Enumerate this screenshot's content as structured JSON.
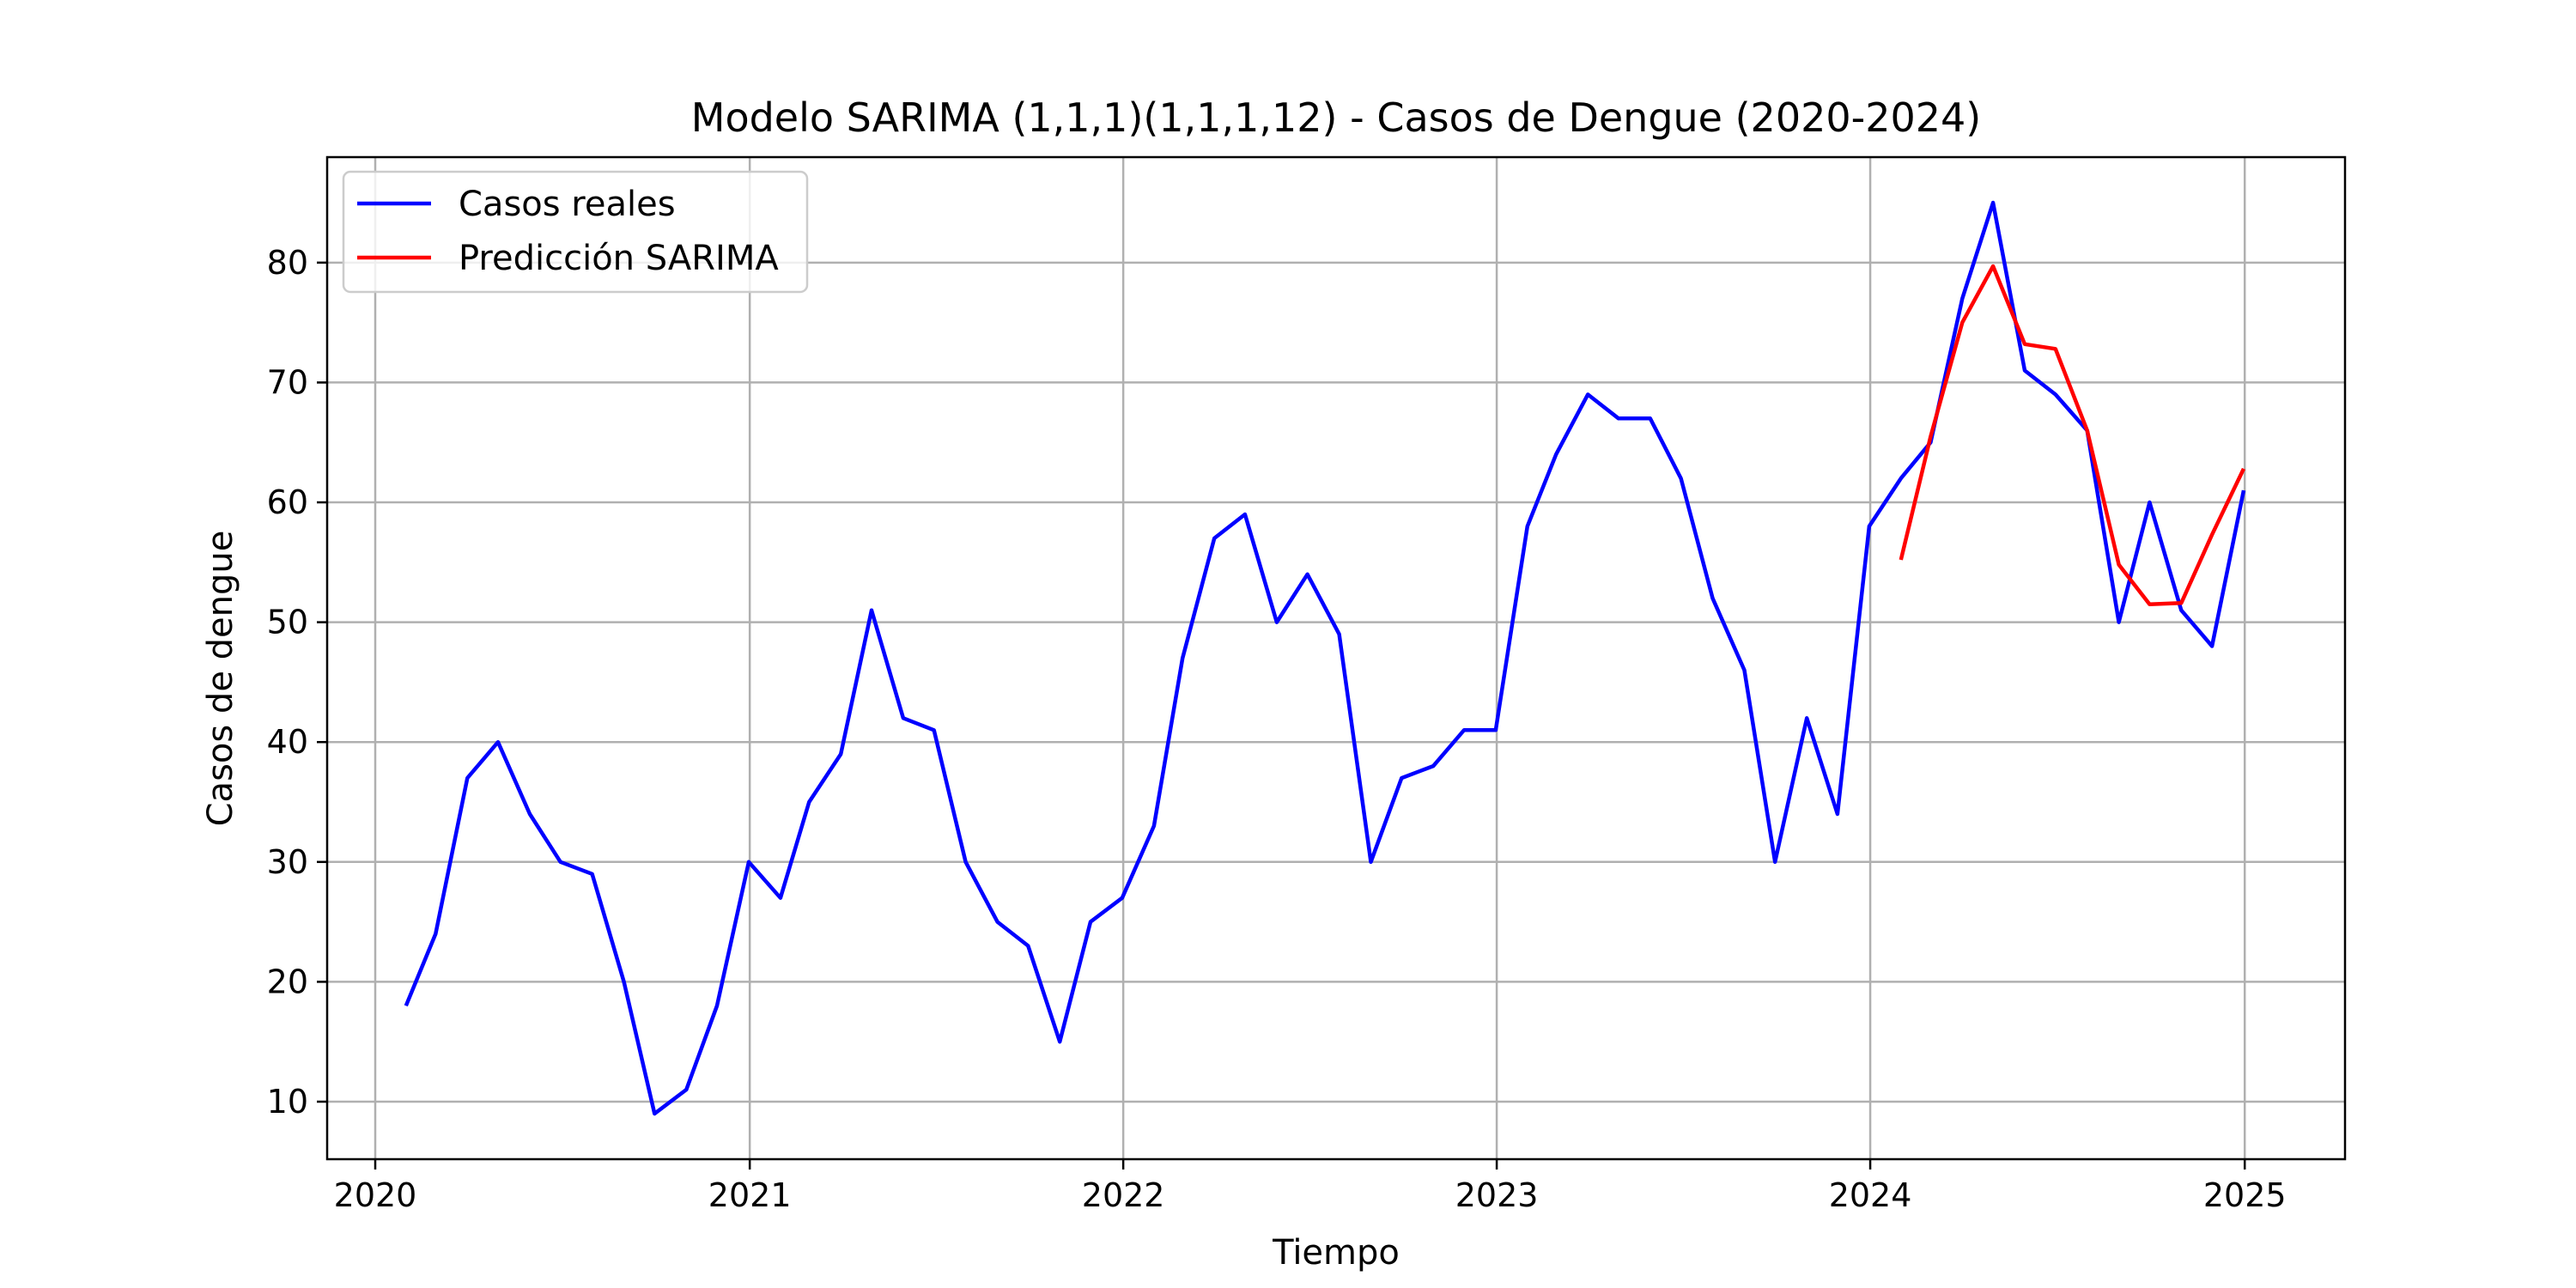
{
  "chart_data": {
    "type": "line",
    "title": "Modelo SARIMA (1,1,1)(1,1,1,12) - Casos de Dengue (2020-2024)",
    "xlabel": "Tiempo",
    "ylabel": "Casos de dengue",
    "xlim": [
      "2019-11-15",
      "2025-04-09"
    ],
    "ylim": [
      5.2,
      88.8
    ],
    "x_ticks": [
      "2020",
      "2021",
      "2022",
      "2023",
      "2024",
      "2025"
    ],
    "y_ticks": [
      10,
      20,
      30,
      40,
      50,
      60,
      70,
      80
    ],
    "grid": true,
    "legend_position": "top-left",
    "series": [
      {
        "name": "Casos reales",
        "color": "#0000ff",
        "x": [
          "2020-01-31",
          "2020-02-29",
          "2020-03-31",
          "2020-04-30",
          "2020-05-31",
          "2020-06-30",
          "2020-07-31",
          "2020-08-31",
          "2020-09-30",
          "2020-10-31",
          "2020-11-30",
          "2020-12-31",
          "2021-01-31",
          "2021-02-28",
          "2021-03-31",
          "2021-04-30",
          "2021-05-31",
          "2021-06-30",
          "2021-07-31",
          "2021-08-31",
          "2021-09-30",
          "2021-10-31",
          "2021-11-30",
          "2021-12-31",
          "2022-01-31",
          "2022-02-28",
          "2022-03-31",
          "2022-04-30",
          "2022-05-31",
          "2022-06-30",
          "2022-07-31",
          "2022-08-31",
          "2022-09-30",
          "2022-10-31",
          "2022-11-30",
          "2022-12-31",
          "2023-01-31",
          "2023-02-28",
          "2023-03-31",
          "2023-04-30",
          "2023-05-31",
          "2023-06-30",
          "2023-07-31",
          "2023-08-31",
          "2023-09-30",
          "2023-10-31",
          "2023-11-30",
          "2023-12-31",
          "2024-01-31",
          "2024-02-29",
          "2024-03-31",
          "2024-04-30",
          "2024-05-31",
          "2024-06-30",
          "2024-07-31",
          "2024-08-31",
          "2024-09-30",
          "2024-10-31",
          "2024-11-30",
          "2024-12-31"
        ],
        "values": [
          18,
          24,
          37,
          40,
          34,
          30,
          29,
          20,
          9,
          11,
          18,
          30,
          27,
          35,
          39,
          51,
          42,
          41,
          30,
          25,
          23,
          15,
          25,
          27,
          33,
          47,
          57,
          59,
          50,
          54,
          49,
          30,
          37,
          38,
          41,
          41,
          58,
          64,
          69,
          67,
          67,
          62,
          52,
          46,
          30,
          42,
          34,
          58,
          62,
          65,
          77,
          85,
          71,
          69,
          66,
          50,
          60,
          51,
          48,
          61
        ]
      },
      {
        "name": "Predicción SARIMA",
        "color": "#ff0000",
        "x": [
          "2024-01-31",
          "2024-02-29",
          "2024-03-31",
          "2024-04-30",
          "2024-05-31",
          "2024-06-30",
          "2024-07-31",
          "2024-08-31",
          "2024-09-30",
          "2024-10-31",
          "2024-11-30",
          "2024-12-31"
        ],
        "values": [
          55.2,
          65.5,
          75.0,
          79.7,
          73.2,
          72.8,
          66.0,
          54.8,
          51.5,
          51.6,
          57.3,
          62.8
        ]
      }
    ]
  }
}
